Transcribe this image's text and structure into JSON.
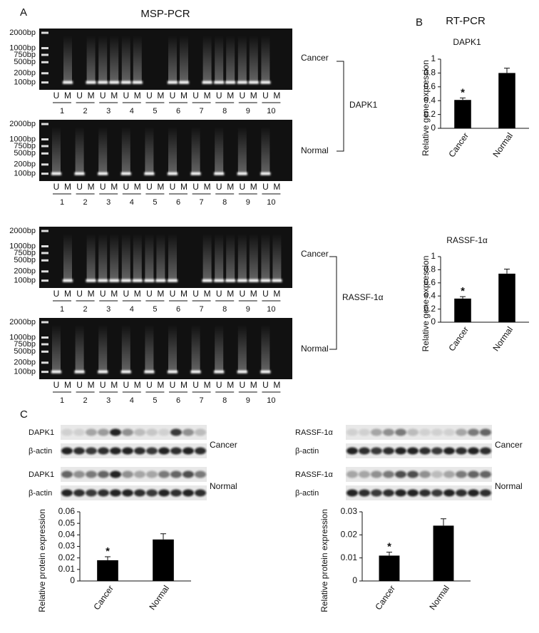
{
  "panels": [
    "A",
    "B",
    "C"
  ],
  "msp_title": "MSP-PCR",
  "rt_title": "RT-PCR",
  "ladder": [
    "2000bp",
    "1000bp",
    "750bp",
    "500bp",
    "200bp",
    "100bp"
  ],
  "lane_letters": [
    "U",
    "M"
  ],
  "lanes": [
    "1",
    "2",
    "3",
    "4",
    "5",
    "6",
    "7",
    "8",
    "9",
    "10"
  ],
  "groups": [
    "Cancer",
    "Normal"
  ],
  "genes": [
    "DAPK1",
    "RASSF-1α"
  ],
  "blot_rows": [
    "DAPK1",
    "β-actin",
    "RASSF-1α"
  ],
  "chart_data": [
    {
      "type": "bar",
      "title": "DAPK1",
      "ylabel": "Relative gene expression",
      "categories": [
        "Cancer",
        "Normal"
      ],
      "values": [
        0.41,
        0.8
      ],
      "errors": [
        0.03,
        0.07
      ],
      "annotations": [
        "*",
        null
      ],
      "color": "#000000",
      "ylim": [
        0,
        1
      ],
      "yticks": [
        0,
        0.2,
        0.4,
        0.6,
        0.8,
        1
      ]
    },
    {
      "type": "bar",
      "title": "RASSF-1α",
      "ylabel": "Relative gene expression",
      "categories": [
        "Cancer",
        "Normal"
      ],
      "values": [
        0.36,
        0.74
      ],
      "errors": [
        0.03,
        0.07
      ],
      "annotations": [
        "*",
        null
      ],
      "color": "#000000",
      "ylim": [
        0,
        1
      ],
      "yticks": [
        0,
        0.2,
        0.4,
        0.6,
        0.8,
        1
      ]
    },
    {
      "type": "bar",
      "ylabel": "Relative protein expression",
      "categories": [
        "Cancer",
        "Normal"
      ],
      "values": [
        0.018,
        0.036
      ],
      "errors": [
        0.003,
        0.005
      ],
      "annotations": [
        "*",
        null
      ],
      "color": "#000000",
      "ylim": [
        0,
        0.06
      ],
      "yticks": [
        0,
        0.01,
        0.02,
        0.03,
        0.04,
        0.05,
        0.06
      ]
    },
    {
      "type": "bar",
      "ylabel": "Relative protein expression",
      "categories": [
        "Cancer",
        "Normal"
      ],
      "values": [
        0.011,
        0.024
      ],
      "errors": [
        0.0015,
        0.003
      ],
      "annotations": [
        "*",
        null
      ],
      "color": "#000000",
      "ylim": [
        0,
        0.03
      ],
      "yticks": [
        0,
        0.01,
        0.02,
        0.03
      ]
    }
  ]
}
